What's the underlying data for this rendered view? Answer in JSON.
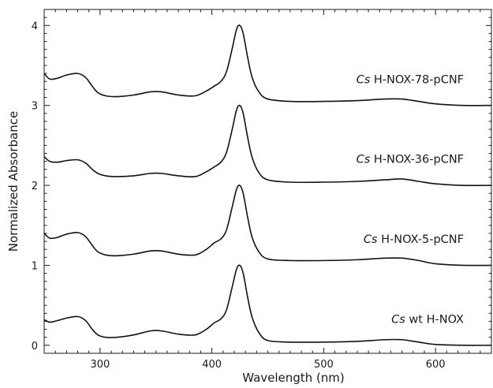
{
  "chart_data": {
    "type": "line",
    "title": "",
    "xlabel": "Wavelength (nm)",
    "ylabel": "Normalized Absorbance",
    "xlim": [
      250,
      650
    ],
    "ylim": [
      -0.1,
      4.2
    ],
    "x_ticks": [
      300,
      400,
      500,
      600
    ],
    "y_ticks": [
      0,
      1,
      2,
      3,
      4
    ],
    "grid": false,
    "legend": "none",
    "line_color": "#111111",
    "annotations": [
      {
        "italic": "Cs",
        "text": " H-NOX-78-pCNF",
        "series": 0
      },
      {
        "italic": "Cs",
        "text": " H-NOX-36-pCNF",
        "series": 1
      },
      {
        "italic": "Cs",
        "text": " H-NOX-5-pCNF",
        "series": 2
      },
      {
        "italic": "Cs",
        "text": " wt H-NOX",
        "series": 3
      }
    ],
    "series": [
      {
        "values": [
          [
            250,
            3.4
          ],
          [
            255,
            3.33
          ],
          [
            262,
            3.34
          ],
          [
            270,
            3.38
          ],
          [
            280,
            3.4
          ],
          [
            287,
            3.35
          ],
          [
            293,
            3.24
          ],
          [
            298,
            3.16
          ],
          [
            305,
            3.12
          ],
          [
            315,
            3.11
          ],
          [
            330,
            3.13
          ],
          [
            345,
            3.17
          ],
          [
            355,
            3.17
          ],
          [
            370,
            3.13
          ],
          [
            385,
            3.12
          ],
          [
            395,
            3.18
          ],
          [
            402,
            3.24
          ],
          [
            408,
            3.3
          ],
          [
            413,
            3.42
          ],
          [
            418,
            3.7
          ],
          [
            422,
            3.95
          ],
          [
            425,
            4.0
          ],
          [
            428,
            3.9
          ],
          [
            432,
            3.6
          ],
          [
            436,
            3.35
          ],
          [
            442,
            3.17
          ],
          [
            450,
            3.08
          ],
          [
            470,
            3.05
          ],
          [
            500,
            3.05
          ],
          [
            530,
            3.06
          ],
          [
            555,
            3.08
          ],
          [
            570,
            3.08
          ],
          [
            585,
            3.05
          ],
          [
            600,
            3.02
          ],
          [
            625,
            3.0
          ],
          [
            650,
            3.0
          ]
        ]
      },
      {
        "values": [
          [
            250,
            2.36
          ],
          [
            255,
            2.3
          ],
          [
            262,
            2.29
          ],
          [
            270,
            2.31
          ],
          [
            280,
            2.32
          ],
          [
            287,
            2.28
          ],
          [
            293,
            2.2
          ],
          [
            298,
            2.15
          ],
          [
            305,
            2.12
          ],
          [
            315,
            2.11
          ],
          [
            330,
            2.12
          ],
          [
            345,
            2.15
          ],
          [
            355,
            2.15
          ],
          [
            370,
            2.12
          ],
          [
            385,
            2.11
          ],
          [
            395,
            2.17
          ],
          [
            402,
            2.23
          ],
          [
            408,
            2.29
          ],
          [
            413,
            2.41
          ],
          [
            418,
            2.69
          ],
          [
            422,
            2.94
          ],
          [
            425,
            3.0
          ],
          [
            428,
            2.9
          ],
          [
            432,
            2.6
          ],
          [
            436,
            2.35
          ],
          [
            442,
            2.16
          ],
          [
            450,
            2.07
          ],
          [
            470,
            2.04
          ],
          [
            500,
            2.04
          ],
          [
            530,
            2.05
          ],
          [
            555,
            2.07
          ],
          [
            570,
            2.08
          ],
          [
            585,
            2.05
          ],
          [
            600,
            2.02
          ],
          [
            625,
            2.0
          ],
          [
            650,
            2.0
          ]
        ]
      },
      {
        "values": [
          [
            250,
            1.4
          ],
          [
            255,
            1.34
          ],
          [
            262,
            1.35
          ],
          [
            270,
            1.39
          ],
          [
            280,
            1.41
          ],
          [
            287,
            1.36
          ],
          [
            293,
            1.25
          ],
          [
            298,
            1.17
          ],
          [
            305,
            1.13
          ],
          [
            315,
            1.12
          ],
          [
            330,
            1.14
          ],
          [
            345,
            1.18
          ],
          [
            355,
            1.18
          ],
          [
            370,
            1.14
          ],
          [
            385,
            1.13
          ],
          [
            395,
            1.2
          ],
          [
            402,
            1.28
          ],
          [
            408,
            1.33
          ],
          [
            413,
            1.44
          ],
          [
            418,
            1.72
          ],
          [
            422,
            1.95
          ],
          [
            425,
            2.0
          ],
          [
            428,
            1.9
          ],
          [
            432,
            1.6
          ],
          [
            436,
            1.35
          ],
          [
            442,
            1.17
          ],
          [
            450,
            1.08
          ],
          [
            470,
            1.06
          ],
          [
            500,
            1.06
          ],
          [
            530,
            1.07
          ],
          [
            555,
            1.09
          ],
          [
            570,
            1.09
          ],
          [
            585,
            1.06
          ],
          [
            600,
            1.02
          ],
          [
            625,
            1.0
          ],
          [
            650,
            1.0
          ]
        ]
      },
      {
        "values": [
          [
            250,
            0.32
          ],
          [
            255,
            0.29
          ],
          [
            262,
            0.31
          ],
          [
            270,
            0.34
          ],
          [
            280,
            0.36
          ],
          [
            287,
            0.31
          ],
          [
            293,
            0.2
          ],
          [
            298,
            0.13
          ],
          [
            305,
            0.1
          ],
          [
            315,
            0.1
          ],
          [
            330,
            0.13
          ],
          [
            345,
            0.18
          ],
          [
            355,
            0.18
          ],
          [
            370,
            0.14
          ],
          [
            385,
            0.13
          ],
          [
            395,
            0.2
          ],
          [
            402,
            0.28
          ],
          [
            408,
            0.33
          ],
          [
            413,
            0.44
          ],
          [
            418,
            0.72
          ],
          [
            422,
            0.95
          ],
          [
            425,
            1.0
          ],
          [
            428,
            0.9
          ],
          [
            432,
            0.6
          ],
          [
            436,
            0.35
          ],
          [
            442,
            0.16
          ],
          [
            450,
            0.06
          ],
          [
            470,
            0.04
          ],
          [
            500,
            0.04
          ],
          [
            530,
            0.05
          ],
          [
            555,
            0.07
          ],
          [
            570,
            0.07
          ],
          [
            585,
            0.04
          ],
          [
            600,
            0.01
          ],
          [
            625,
            0.0
          ],
          [
            650,
            0.0
          ]
        ]
      }
    ]
  }
}
